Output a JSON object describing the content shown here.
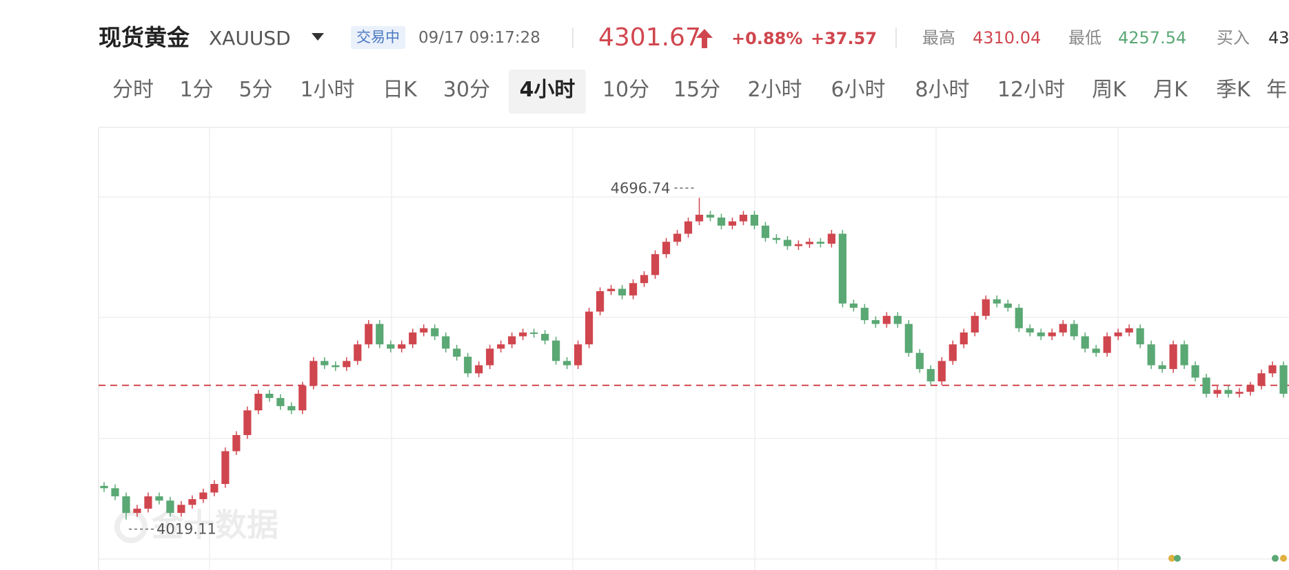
{
  "header": {
    "title": "现货黄金",
    "symbol": "XAUUSD",
    "status": "交易中",
    "time": "09/17 09:17:28",
    "price": 4301.67,
    "change_pct": "+0.88%",
    "change": "+37.57",
    "high_label": "最高",
    "high": 4310.04,
    "low_label": "最低",
    "low": 4257.54,
    "bid_label": "买入",
    "bid": "43"
  },
  "tabs": [
    "分时",
    "1分",
    "5分",
    "1小时",
    "日K",
    "30分",
    "4小时",
    "10分",
    "15分",
    "2小时",
    "6小时",
    "8小时",
    "12小时",
    "周K",
    "月K",
    "季K",
    "年K"
  ],
  "selected_tab": "4小时",
  "chart_data": {
    "type": "candlestick",
    "watermark": "金十数据",
    "up_color": "#d0464e",
    "down_color": "#5aa874",
    "ylim": [
      3936,
      4845
    ],
    "open": [
      4090,
      4085,
      4068,
      4033,
      4042,
      4068,
      4059,
      4033,
      4050,
      4062,
      4076,
      4094,
      4163,
      4197,
      4249,
      4284,
      4275,
      4258,
      4249,
      4301,
      4353,
      4344,
      4340,
      4353,
      4388,
      4431,
      4388,
      4379,
      4388,
      4413,
      4422,
      4405,
      4379,
      4362,
      4327,
      4344,
      4379,
      4388,
      4405,
      4413,
      4410,
      4396,
      4353,
      4344,
      4388,
      4457,
      4500,
      4505,
      4491,
      4517,
      4534,
      4578,
      4604,
      4621,
      4647,
      4661,
      4655,
      4638,
      4647,
      4661,
      4638,
      4612,
      4608,
      4595,
      4599,
      4604,
      4600,
      4621,
      4474,
      4465,
      4439,
      4431,
      4448,
      4431,
      4370,
      4336,
      4310,
      4353,
      4388,
      4413,
      4448,
      4483,
      4474,
      4465,
      4422,
      4413,
      4405,
      4413,
      4431,
      4405,
      4379,
      4370,
      4405,
      4413,
      4422,
      4388,
      4344,
      4336,
      4388,
      4344,
      4318,
      4284,
      4292,
      4284,
      4288,
      4301,
      4327,
      4344
    ],
    "high": [
      4098,
      4093,
      4076,
      4050,
      4076,
      4076,
      4067,
      4058,
      4070,
      4084,
      4102,
      4171,
      4205,
      4257,
      4292,
      4292,
      4283,
      4266,
      4309,
      4361,
      4361,
      4352,
      4361,
      4396,
      4439,
      4439,
      4396,
      4396,
      4421,
      4430,
      4430,
      4413,
      4387,
      4370,
      4352,
      4387,
      4396,
      4413,
      4421,
      4421,
      4418,
      4404,
      4361,
      4396,
      4465,
      4508,
      4513,
      4513,
      4525,
      4542,
      4586,
      4612,
      4629,
      4655,
      4696.74,
      4669,
      4663,
      4655,
      4669,
      4669,
      4646,
      4620,
      4616,
      4607,
      4612,
      4612,
      4629,
      4629,
      4482,
      4473,
      4447,
      4456,
      4456,
      4439,
      4378,
      4344,
      4361,
      4396,
      4421,
      4456,
      4491,
      4491,
      4482,
      4473,
      4430,
      4421,
      4421,
      4439,
      4439,
      4413,
      4387,
      4413,
      4421,
      4430,
      4430,
      4396,
      4352,
      4396,
      4396,
      4352,
      4326,
      4300,
      4300,
      4296,
      4309,
      4335,
      4352,
      4352
    ],
    "low": [
      4077,
      4060,
      4019.11,
      4025,
      4034,
      4051,
      4025,
      4025,
      4042,
      4054,
      4068,
      4086,
      4155,
      4189,
      4241,
      4267,
      4250,
      4241,
      4241,
      4293,
      4336,
      4332,
      4332,
      4345,
      4380,
      4380,
      4371,
      4371,
      4380,
      4405,
      4397,
      4371,
      4354,
      4319,
      4319,
      4336,
      4371,
      4380,
      4397,
      4402,
      4388,
      4345,
      4336,
      4336,
      4380,
      4449,
      4492,
      4483,
      4483,
      4509,
      4526,
      4570,
      4596,
      4613,
      4639,
      4647,
      4630,
      4630,
      4639,
      4630,
      4604,
      4600,
      4587,
      4587,
      4591,
      4592,
      4592,
      4466,
      4457,
      4431,
      4423,
      4423,
      4423,
      4362,
      4328,
      4302,
      4302,
      4345,
      4380,
      4405,
      4440,
      4466,
      4457,
      4414,
      4405,
      4397,
      4397,
      4405,
      4397,
      4371,
      4362,
      4362,
      4397,
      4405,
      4380,
      4336,
      4328,
      4328,
      4336,
      4310,
      4276,
      4276,
      4276,
      4276,
      4280,
      4293,
      4319,
      4276
    ],
    "close": [
      4085,
      4068,
      4033,
      4042,
      4068,
      4059,
      4033,
      4050,
      4062,
      4076,
      4094,
      4163,
      4197,
      4249,
      4284,
      4275,
      4258,
      4249,
      4301,
      4353,
      4344,
      4340,
      4353,
      4388,
      4431,
      4388,
      4379,
      4388,
      4413,
      4422,
      4405,
      4379,
      4362,
      4327,
      4344,
      4379,
      4388,
      4405,
      4413,
      4410,
      4396,
      4353,
      4344,
      4388,
      4457,
      4500,
      4505,
      4491,
      4517,
      4534,
      4578,
      4604,
      4621,
      4647,
      4661,
      4655,
      4638,
      4647,
      4661,
      4638,
      4612,
      4608,
      4595,
      4599,
      4604,
      4600,
      4621,
      4474,
      4465,
      4439,
      4431,
      4448,
      4431,
      4370,
      4336,
      4310,
      4353,
      4388,
      4413,
      4448,
      4483,
      4474,
      4465,
      4422,
      4413,
      4405,
      4413,
      4431,
      4405,
      4379,
      4370,
      4405,
      4413,
      4422,
      4388,
      4344,
      4336,
      4388,
      4344,
      4318,
      4284,
      4292,
      4284,
      4288,
      4301,
      4327,
      4344,
      4284
    ]
  }
}
